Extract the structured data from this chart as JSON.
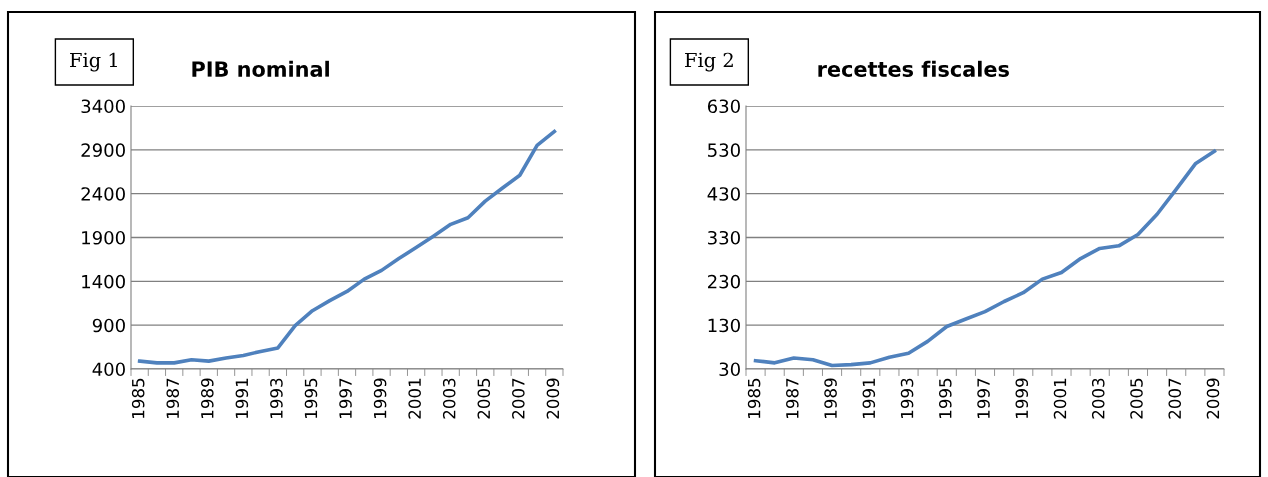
{
  "chart_data": [
    {
      "type": "line",
      "title": "PIB nominal",
      "annotations": [
        "Fig 1"
      ],
      "categories": [
        "1985",
        null,
        "1987",
        null,
        "1989",
        null,
        "1991",
        null,
        "1993",
        null,
        "1995",
        null,
        "1997",
        null,
        "1999",
        null,
        "2001",
        null,
        "2003",
        null,
        "2005",
        null,
        "2007",
        null,
        "2009"
      ],
      "series": [
        {
          "color": "#4f81bd",
          "values": [
            490,
            470,
            470,
            505,
            490,
            525,
            555,
            600,
            640,
            895,
            1065,
            1180,
            1285,
            1425,
            1525,
            1660,
            1785,
            1915,
            2050,
            2125,
            2315,
            2465,
            2610,
            2950,
            3110
          ]
        }
      ],
      "ylim": [
        400,
        3400
      ],
      "yticks": [
        400,
        900,
        1400,
        1900,
        2400,
        2900,
        3400
      ],
      "grid": "y",
      "legend": false,
      "marker": "none",
      "line_style": "solid"
    },
    {
      "type": "line",
      "title": "recettes fiscales",
      "annotations": [
        "Fig 2"
      ],
      "categories": [
        "1985",
        null,
        "1987",
        null,
        "1989",
        null,
        "1991",
        null,
        "1993",
        null,
        "1995",
        null,
        "1997",
        null,
        "1999",
        null,
        "2001",
        null,
        "2003",
        null,
        "2005",
        null,
        "2007",
        null,
        "2009"
      ],
      "series": [
        {
          "color": "#4f81bd",
          "values": [
            49,
            44,
            55,
            51,
            38,
            40,
            44,
            57,
            66,
            93,
            127,
            144,
            161,
            184,
            204,
            235,
            250,
            282,
            305,
            311,
            337,
            383,
            440,
            498,
            527
          ]
        }
      ],
      "ylim": [
        30,
        630
      ],
      "yticks": [
        30,
        130,
        230,
        330,
        430,
        530,
        630
      ],
      "grid": "y",
      "legend": false,
      "marker": "none",
      "line_style": "solid"
    }
  ]
}
